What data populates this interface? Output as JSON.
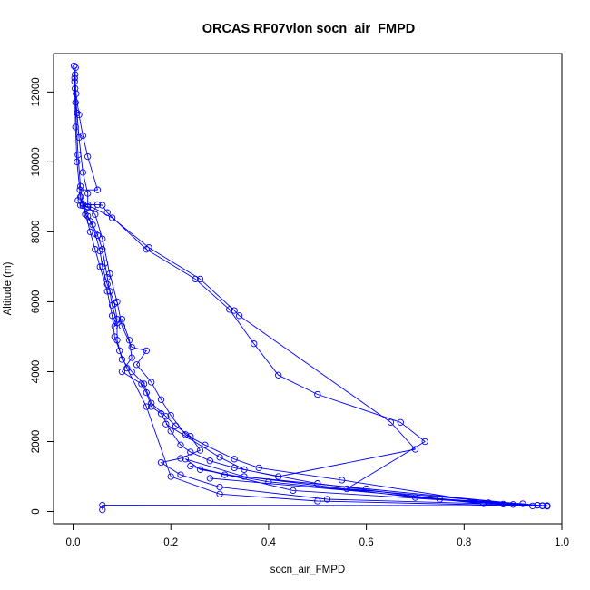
{
  "chart_data": {
    "type": "line",
    "title": "ORCAS RF07vlon socn_air_FMPD",
    "xlabel": "socn_air_FMPD",
    "ylabel": "Altitude (m)",
    "xlim": [
      -0.04,
      1.0
    ],
    "ylim": [
      -350,
      13100
    ],
    "x_ticks": [
      {
        "value": 0,
        "label": "0.0"
      },
      {
        "value": 0.2,
        "label": "0.2"
      },
      {
        "value": 0.4,
        "label": "0.4"
      },
      {
        "value": 0.6,
        "label": "0.6"
      },
      {
        "value": 0.8,
        "label": "0.8"
      },
      {
        "value": 1.0,
        "label": "1.0"
      }
    ],
    "y_ticks": [
      {
        "value": 0,
        "label": "0"
      },
      {
        "value": 2000,
        "label": "2000"
      },
      {
        "value": 4000,
        "label": "4000"
      },
      {
        "value": 6000,
        "label": "6000"
      },
      {
        "value": 8000,
        "label": "8000"
      },
      {
        "value": 10000,
        "label": "10000"
      },
      {
        "value": 12000,
        "label": "12000"
      }
    ],
    "grid": false,
    "legend": "none",
    "series": [
      {
        "color": "#0000ff",
        "marker": "open-circle",
        "points": [
          [
            0.06,
            50
          ],
          [
            0.06,
            180
          ],
          [
            0.97,
            170
          ],
          [
            0.95,
            180
          ],
          [
            0.52,
            350
          ],
          [
            0.3,
            700
          ],
          [
            0.22,
            1050
          ],
          [
            0.18,
            1400
          ],
          [
            0.22,
            1520
          ],
          [
            0.26,
            1750
          ],
          [
            0.24,
            2150
          ],
          [
            0.21,
            2450
          ],
          [
            0.19,
            2720
          ],
          [
            0.16,
            3100
          ],
          [
            0.145,
            3650
          ],
          [
            0.12,
            4000
          ],
          [
            0.1,
            4350
          ],
          [
            0.09,
            4900
          ],
          [
            0.09,
            5400
          ],
          [
            0.08,
            5900
          ],
          [
            0.075,
            6300
          ],
          [
            0.07,
            6700
          ],
          [
            0.065,
            7100
          ],
          [
            0.06,
            7500
          ],
          [
            0.05,
            7900
          ],
          [
            0.04,
            8200
          ],
          [
            0.03,
            8450
          ],
          [
            0.02,
            8750
          ],
          [
            0.03,
            8780
          ],
          [
            0.05,
            8780
          ],
          [
            0.06,
            8760
          ],
          [
            0.07,
            8550
          ],
          [
            0.15,
            7500
          ],
          [
            0.25,
            6650
          ],
          [
            0.32,
            5780
          ],
          [
            0.37,
            4800
          ],
          [
            0.42,
            3900
          ],
          [
            0.5,
            3350
          ],
          [
            0.67,
            2550
          ],
          [
            0.72,
            2000
          ],
          [
            0.56,
            650
          ],
          [
            0.97,
            150
          ],
          [
            0.94,
            160
          ],
          [
            0.5,
            300
          ],
          [
            0.3,
            500
          ],
          [
            0.2,
            1000
          ],
          [
            0.15,
            3000
          ],
          [
            0.11,
            4100
          ],
          [
            0.095,
            4600
          ],
          [
            0.085,
            5000
          ],
          [
            0.08,
            5600
          ],
          [
            0.07,
            6300
          ],
          [
            0.055,
            7000
          ],
          [
            0.045,
            7500
          ],
          [
            0.035,
            8000
          ],
          [
            0.02,
            8800
          ],
          [
            0.015,
            9300
          ],
          [
            0.01,
            10200
          ],
          [
            0.005,
            11700
          ],
          [
            0.003,
            12400
          ],
          [
            0.002,
            12750
          ],
          [
            0.004,
            12100
          ],
          [
            0.008,
            11400
          ],
          [
            0.012,
            10700
          ],
          [
            0.02,
            9700
          ],
          [
            0.03,
            9100
          ],
          [
            0.03,
            8700
          ],
          [
            0.045,
            8500
          ],
          [
            0.06,
            7800
          ],
          [
            0.075,
            6800
          ],
          [
            0.09,
            6000
          ],
          [
            0.1,
            5300
          ],
          [
            0.12,
            4700
          ],
          [
            0.15,
            4600
          ],
          [
            0.13,
            4200
          ],
          [
            0.16,
            3700
          ],
          [
            0.18,
            3200
          ],
          [
            0.2,
            2750
          ],
          [
            0.23,
            2200
          ],
          [
            0.27,
            1900
          ],
          [
            0.33,
            1500
          ],
          [
            0.38,
            1250
          ],
          [
            0.55,
            900
          ],
          [
            0.85,
            250
          ],
          [
            0.95,
            180
          ],
          [
            0.92,
            220
          ],
          [
            0.7,
            400
          ],
          [
            0.35,
            1000
          ],
          [
            0.23,
            1500
          ],
          [
            0.26,
            1200
          ],
          [
            0.4,
            850
          ],
          [
            0.84,
            220
          ],
          [
            0.97,
            160
          ],
          [
            0.9,
            200
          ],
          [
            0.45,
            600
          ],
          [
            0.24,
            1300
          ],
          [
            0.31,
            1050
          ],
          [
            0.6,
            650
          ],
          [
            0.96,
            160
          ],
          [
            0.88,
            210
          ],
          [
            0.28,
            950
          ]
        ]
      },
      {
        "color": "#0000ff",
        "marker": "open-circle",
        "points": [
          [
            0.19,
            2500
          ],
          [
            0.3,
            1550
          ],
          [
            0.35,
            1200
          ],
          [
            0.42,
            1000
          ],
          [
            0.7,
            1780
          ],
          [
            0.65,
            2550
          ],
          [
            0.34,
            5600
          ],
          [
            0.33,
            5750
          ],
          [
            0.26,
            6650
          ],
          [
            0.155,
            7550
          ],
          [
            0.08,
            8400
          ],
          [
            0.04,
            8700
          ],
          [
            0.03,
            8720
          ],
          [
            0.02,
            8750
          ],
          [
            0.015,
            8760
          ],
          [
            0.01,
            8900
          ],
          [
            0.014,
            9200
          ],
          [
            0.05,
            9200
          ],
          [
            0.03,
            10150
          ],
          [
            0.02,
            10750
          ],
          [
            0.012,
            11350
          ],
          [
            0.006,
            11950
          ],
          [
            0.004,
            12500
          ],
          [
            0.005,
            12700
          ],
          [
            0.003,
            12300
          ],
          [
            0.005,
            11000
          ],
          [
            0.008,
            10000
          ],
          [
            0.015,
            9000
          ],
          [
            0.025,
            8500
          ],
          [
            0.035,
            8300
          ],
          [
            0.045,
            7950
          ],
          [
            0.055,
            7450
          ],
          [
            0.06,
            7000
          ],
          [
            0.07,
            6500
          ],
          [
            0.085,
            5950
          ],
          [
            0.09,
            5500
          ],
          [
            0.085,
            5300
          ],
          [
            0.1,
            5500
          ],
          [
            0.115,
            4900
          ],
          [
            0.12,
            4400
          ],
          [
            0.1,
            4000
          ],
          [
            0.14,
            3650
          ],
          [
            0.15,
            3400
          ],
          [
            0.16,
            3000
          ],
          [
            0.18,
            2800
          ],
          [
            0.2,
            2300
          ],
          [
            0.22,
            1900
          ],
          [
            0.24,
            1700
          ],
          [
            0.28,
            1450
          ],
          [
            0.33,
            1250
          ],
          [
            0.5,
            800
          ],
          [
            0.75,
            350
          ],
          [
            0.96,
            170
          ]
        ]
      }
    ]
  }
}
